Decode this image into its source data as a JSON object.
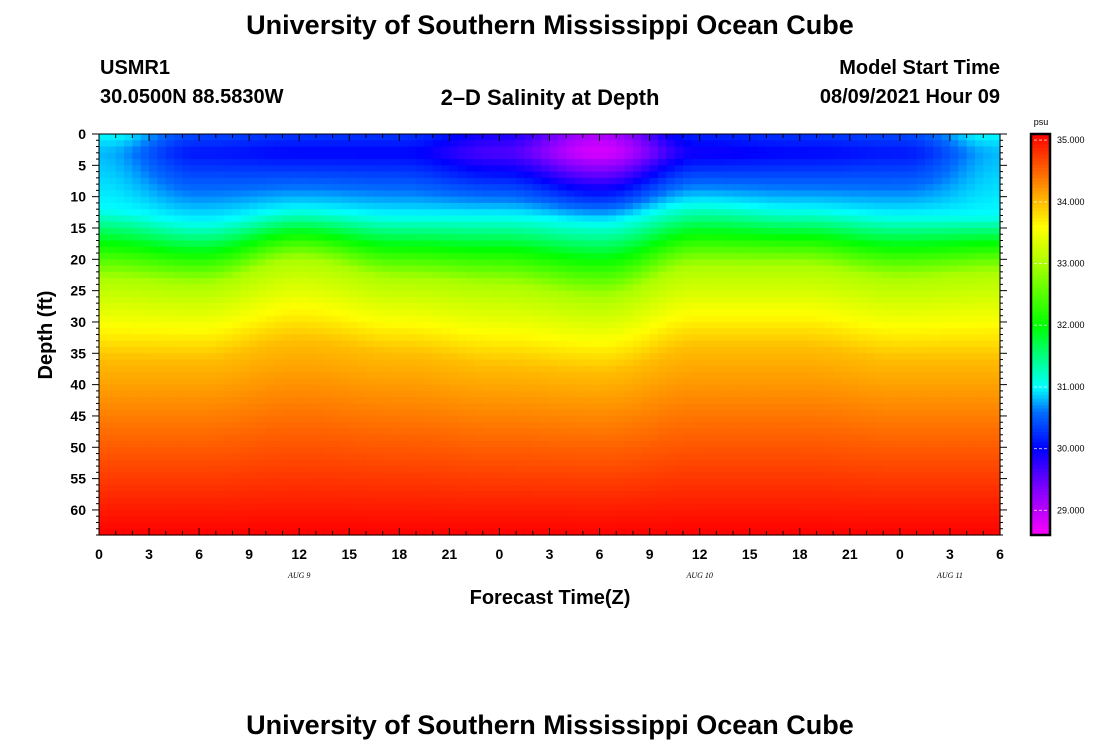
{
  "header": {
    "title_top": "University of Southern Mississippi Ocean Cube",
    "title_bottom": "University of Southern Mississippi Ocean Cube",
    "station_id": "USMR1",
    "coordinates": "30.0500N  88.5830W",
    "plot_subtitle": "2–D Salinity at Depth",
    "model_start_label": "Model Start Time",
    "model_start_value": "08/09/2021 Hour 09"
  },
  "chart_data": {
    "type": "heatmap",
    "title": "2-D Salinity at Depth",
    "xlabel": "Forecast Time(Z)",
    "ylabel": "Depth (ft)",
    "x_ticks": [
      "0",
      "3",
      "6",
      "9",
      "12",
      "15",
      "18",
      "21",
      "0",
      "3",
      "6",
      "9",
      "12",
      "15",
      "18",
      "21",
      "0",
      "3",
      "6"
    ],
    "x_tick_hours": [
      0,
      3,
      6,
      9,
      12,
      15,
      18,
      21,
      24,
      27,
      30,
      33,
      36,
      39,
      42,
      45,
      48,
      51,
      54
    ],
    "x_range_hours": [
      0,
      54
    ],
    "date_labels": [
      {
        "label": "AUG 9",
        "hour": 12
      },
      {
        "label": "AUG 10",
        "hour": 36
      },
      {
        "label": "AUG 11",
        "hour": 51
      }
    ],
    "y_ticks": [
      0,
      5,
      10,
      15,
      20,
      25,
      30,
      35,
      40,
      45,
      50,
      55,
      60
    ],
    "y_range_ft": [
      0,
      64
    ],
    "colorbar": {
      "unit": "psu",
      "min": 28.6,
      "max": 35.1,
      "ticks": [
        29.0,
        30.0,
        31.0,
        32.0,
        33.0,
        34.0,
        35.0
      ],
      "tick_labels": [
        "29.000",
        "30.000",
        "31.000",
        "32.000",
        "33.000",
        "34.000",
        "35.000"
      ]
    },
    "salinity_profile": {
      "description": "Approximate depth (ft) at which salinity reaches each value, varying with forecast hour",
      "hours": [
        0,
        6,
        12,
        18,
        24,
        30,
        36,
        42,
        48,
        54
      ],
      "depth_of_31psu": [
        12,
        14,
        12,
        13,
        13,
        14,
        11,
        12,
        13,
        13
      ],
      "depth_of_33psu": [
        23,
        24,
        20,
        23,
        24,
        26,
        21,
        21,
        23,
        22
      ],
      "depth_of_34psu": [
        36,
        36,
        33,
        35,
        37,
        38,
        34,
        34,
        36,
        36
      ],
      "surface_min_psu": [
        30.8,
        30.1,
        30.0,
        30.0,
        29.6,
        28.8,
        29.9,
        30.0,
        30.1,
        30.8
      ],
      "bottom_psu": 35.1
    }
  },
  "colors": {
    "background": "#ffffff",
    "axis": "#000000"
  }
}
